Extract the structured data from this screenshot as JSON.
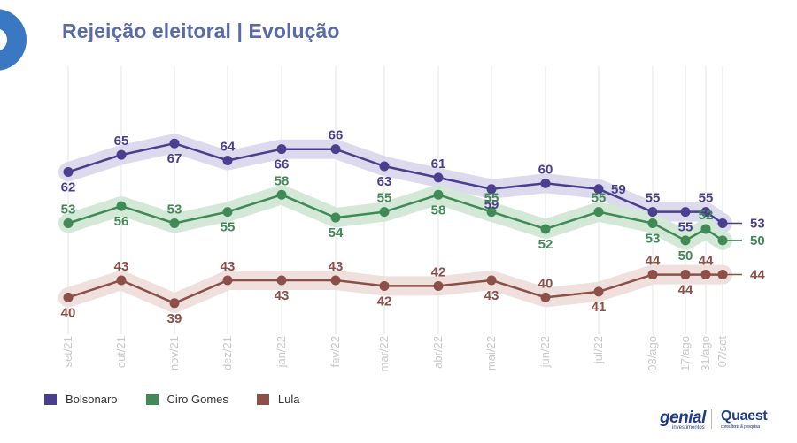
{
  "title": "Rejeição eleitoral | Evolução",
  "brands": {
    "genial": "genial",
    "genial_sub": "investimentos",
    "quaest": "Quaest",
    "quaest_sub": "consultoria & pesquisa"
  },
  "chart_data": {
    "type": "line",
    "title": "Rejeição eleitoral | Evolução",
    "categories": [
      "set/21",
      "out/21",
      "nov/21",
      "dez/21",
      "jan/22",
      "fev/22",
      "mar/22",
      "abr/22",
      "mai/22",
      "jun/22",
      "jul/22",
      "03/ago",
      "17/ago",
      "31/ago",
      "07/set"
    ],
    "series": [
      {
        "name": "Bolsonaro",
        "color": "#4a3f8f",
        "band": "#dcdaec",
        "values": [
          62,
          65,
          67,
          64,
          66,
          66,
          63,
          61,
          59,
          60,
          59,
          55,
          55,
          55,
          53
        ],
        "label_pos": [
          "below",
          "above",
          "below",
          "above",
          "below",
          "above",
          "below",
          "above",
          "below",
          "above",
          "right",
          "above",
          "below",
          "above",
          "right"
        ]
      },
      {
        "name": "Ciro Gomes",
        "color": "#3f8a55",
        "band": "#d3e8d7",
        "values": [
          53,
          56,
          53,
          55,
          58,
          54,
          55,
          58,
          55,
          52,
          55,
          53,
          50,
          52,
          50
        ],
        "label_pos": [
          "above",
          "below",
          "above",
          "below",
          "above",
          "below",
          "above",
          "below",
          "above",
          "below",
          "above",
          "below",
          "below",
          "above",
          "right"
        ]
      },
      {
        "name": "Lula",
        "color": "#8c5048",
        "band": "#efdfdd",
        "values": [
          40,
          43,
          39,
          43,
          43,
          43,
          42,
          42,
          43,
          40,
          41,
          44,
          44,
          44,
          44
        ],
        "label_pos": [
          "below",
          "above",
          "below",
          "above",
          "below",
          "above",
          "below",
          "above",
          "below",
          "above",
          "below",
          "above",
          "below",
          "above",
          "right"
        ]
      }
    ],
    "xlabel": "",
    "ylabel": "",
    "grid": true,
    "legend": "bottom-left"
  }
}
